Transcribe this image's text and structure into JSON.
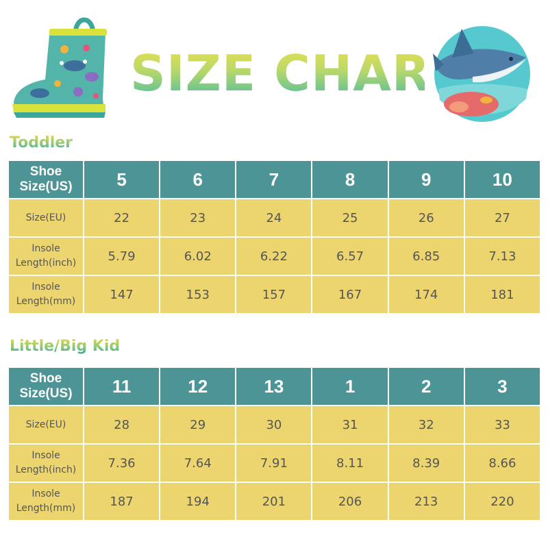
{
  "title": "SIZE CHART",
  "icons": {
    "boot": "rain-boot-icon",
    "shark": "shark-badge-icon"
  },
  "colors": {
    "header_bg": "#4d9497",
    "row_bg": "#ecd56e",
    "title_gradient_top": "#f0e24a",
    "title_gradient_bottom": "#3fb9a8"
  },
  "toddler": {
    "section_title": "Toddler",
    "header": {
      "label_line1": "Shoe",
      "label_line2": "Size(US)",
      "values": [
        "5",
        "6",
        "7",
        "8",
        "9",
        "10"
      ]
    },
    "rows": [
      {
        "label_line1": "Size(EU)",
        "label_line2": "",
        "values": [
          "22",
          "23",
          "24",
          "25",
          "26",
          "27"
        ]
      },
      {
        "label_line1": "Insole",
        "label_line2": "Length(inch)",
        "values": [
          "5.79",
          "6.02",
          "6.22",
          "6.57",
          "6.85",
          "7.13"
        ]
      },
      {
        "label_line1": "Insole",
        "label_line2": "Length(mm)",
        "values": [
          "147",
          "153",
          "157",
          "167",
          "174",
          "181"
        ]
      }
    ]
  },
  "kid": {
    "section_title": "Little/Big Kid",
    "header": {
      "label_line1": "Shoe",
      "label_line2": "Size(US)",
      "values": [
        "11",
        "12",
        "13",
        "1",
        "2",
        "3"
      ]
    },
    "rows": [
      {
        "label_line1": "Size(EU)",
        "label_line2": "",
        "values": [
          "28",
          "29",
          "30",
          "31",
          "32",
          "33"
        ]
      },
      {
        "label_line1": "Insole",
        "label_line2": "Length(inch)",
        "values": [
          "7.36",
          "7.64",
          "7.91",
          "8.11",
          "8.39",
          "8.66"
        ]
      },
      {
        "label_line1": "Insole",
        "label_line2": "Length(mm)",
        "values": [
          "187",
          "194",
          "201",
          "206",
          "213",
          "220"
        ]
      }
    ]
  }
}
